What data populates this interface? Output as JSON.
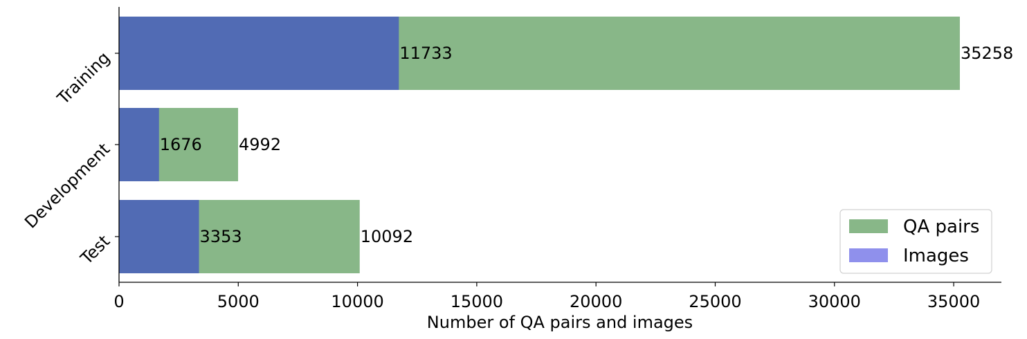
{
  "chart_data": {
    "type": "bar",
    "orientation": "horizontal",
    "stacking": "overlay",
    "categories": [
      "Training",
      "Development",
      "Test"
    ],
    "series": [
      {
        "name": "QA pairs",
        "values": [
          35258,
          4992,
          10092
        ],
        "color": "#88b788"
      },
      {
        "name": "Images",
        "values": [
          11733,
          1676,
          3353
        ],
        "color": "#516bb4",
        "legend_color": "#8f90ec"
      }
    ],
    "xlabel": "Number of QA pairs and images",
    "ylabel": "",
    "xlim": [
      0,
      37000
    ],
    "xticks": [
      0,
      5000,
      10000,
      15000,
      20000,
      25000,
      30000,
      35000
    ],
    "legend_position": "lower right",
    "grid": false
  }
}
